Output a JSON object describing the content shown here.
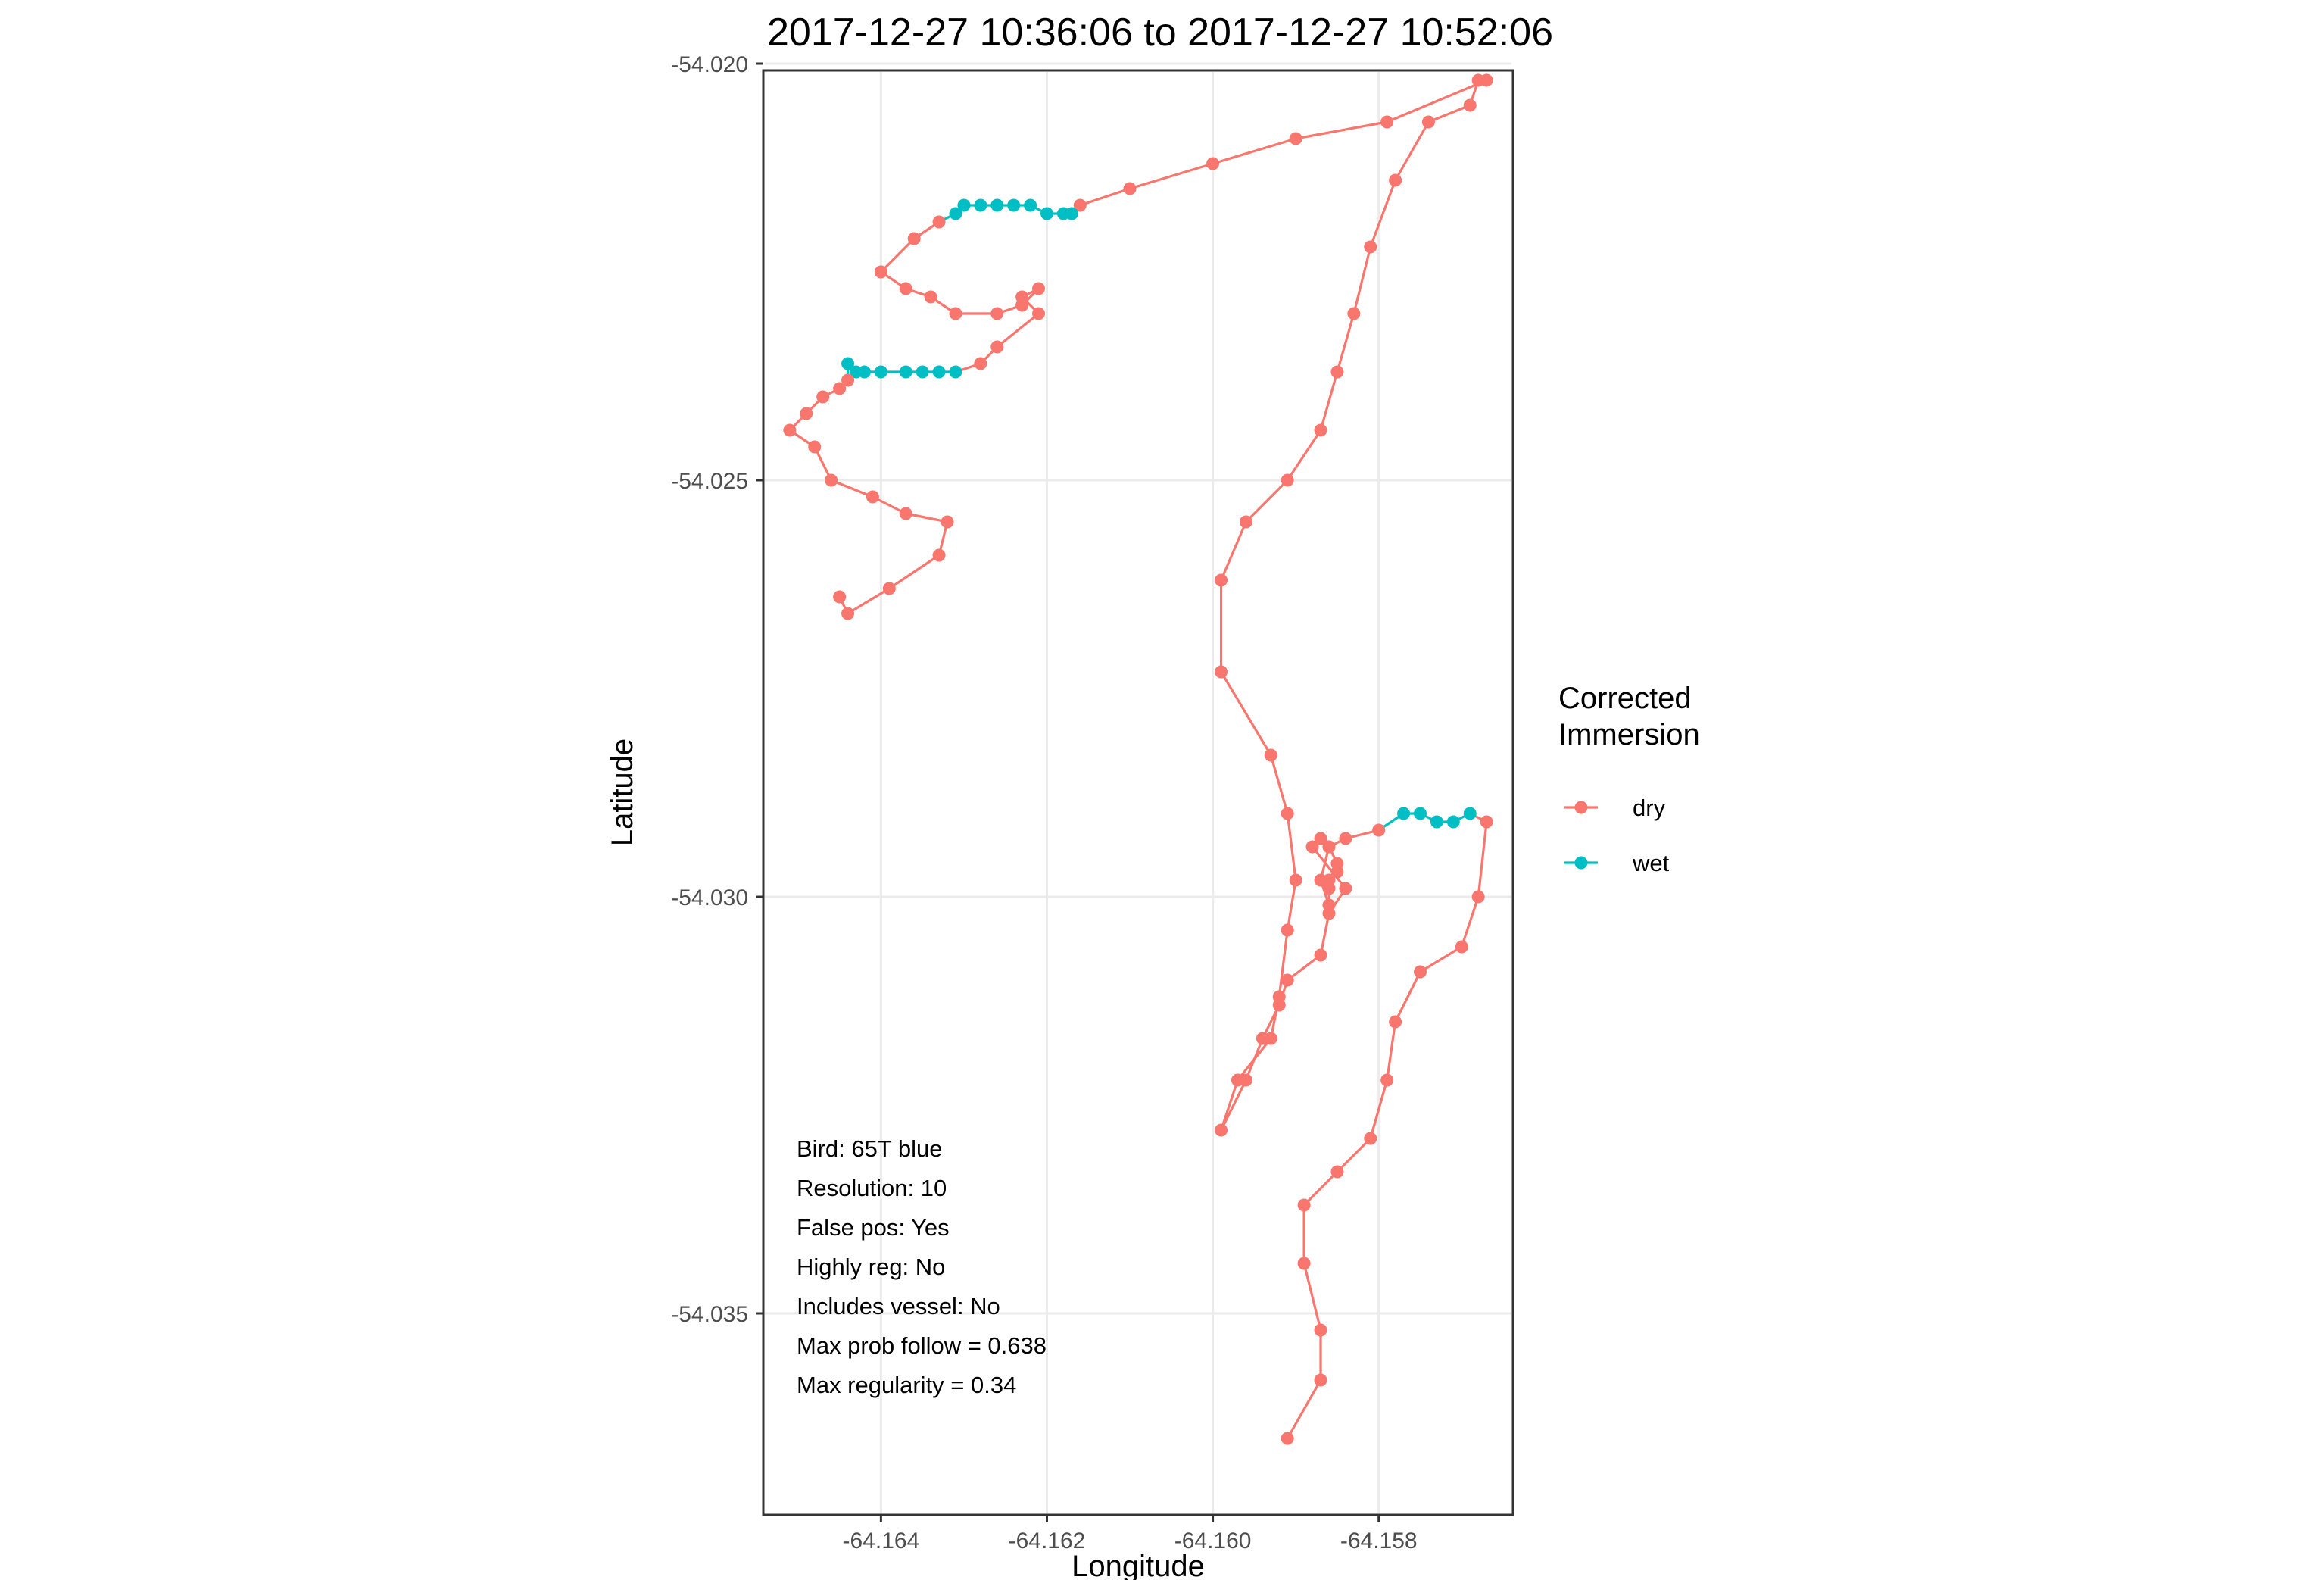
{
  "chart_data": {
    "type": "scatter",
    "title": "2017-12-27 10:36:06 to 2017-12-27 10:52:06",
    "xlabel": "Longitude",
    "ylabel": "Latitude",
    "xlim": [
      -64.1654,
      -64.1564
    ],
    "ylim": [
      -54.0374,
      -54.0201
    ],
    "x_ticks": [
      -64.164,
      -64.162,
      -64.16,
      -64.158
    ],
    "x_tick_labels": [
      "-64.164",
      "-64.162",
      "-64.160",
      "-64.158"
    ],
    "y_ticks": [
      -54.02,
      -54.025,
      -54.03,
      -54.035
    ],
    "y_tick_labels": [
      "-54.020",
      "-54.025",
      "-54.030",
      "-54.035"
    ],
    "grid": true,
    "legend": {
      "title_lines": [
        "Corrected",
        "Immersion"
      ],
      "placement": "right",
      "entries": [
        {
          "label": "dry",
          "color": "#F8766D"
        },
        {
          "label": "wet",
          "color": "#00BFC4"
        }
      ]
    },
    "annotations": [
      "Bird: 65T blue",
      "Resolution: 10",
      "False pos: Yes",
      "Highly reg: No",
      "Includes vessel: No",
      "Max prob follow = 0.638",
      "Max regularity = 0.34"
    ],
    "path": [
      [
        -64.1591,
        -54.0365,
        "dry"
      ],
      [
        -64.1587,
        -54.0358,
        "dry"
      ],
      [
        -64.1587,
        -54.0352,
        "dry"
      ],
      [
        -64.1589,
        -54.0344,
        "dry"
      ],
      [
        -64.1589,
        -54.0337,
        "dry"
      ],
      [
        -64.1585,
        -54.0333,
        "dry"
      ],
      [
        -64.1581,
        -54.0329,
        "dry"
      ],
      [
        -64.1579,
        -54.0322,
        "dry"
      ],
      [
        -64.1578,
        -54.0315,
        "dry"
      ],
      [
        -64.1575,
        -54.0309,
        "dry"
      ],
      [
        -64.157,
        -54.0306,
        "dry"
      ],
      [
        -64.1568,
        -54.03,
        "dry"
      ],
      [
        -64.1567,
        -54.0291,
        "dry"
      ],
      [
        -64.1569,
        -54.029,
        "wet"
      ],
      [
        -64.1571,
        -54.0291,
        "wet"
      ],
      [
        -64.1573,
        -54.0291,
        "wet"
      ],
      [
        -64.1575,
        -54.029,
        "wet"
      ],
      [
        -64.1577,
        -54.029,
        "wet"
      ],
      [
        -64.158,
        -54.0292,
        "dry"
      ],
      [
        -64.1584,
        -54.0293,
        "dry"
      ],
      [
        -64.1586,
        -54.0294,
        "dry"
      ],
      [
        -64.1585,
        -54.0296,
        "dry"
      ],
      [
        -64.1585,
        -54.0297,
        "dry"
      ],
      [
        -64.1586,
        -54.0298,
        "dry"
      ],
      [
        -64.1586,
        -54.0299,
        "dry"
      ],
      [
        -64.1586,
        -54.0301,
        "dry"
      ],
      [
        -64.1587,
        -54.0298,
        "dry"
      ],
      [
        -64.1586,
        -54.0294,
        "dry"
      ],
      [
        -64.1587,
        -54.0293,
        "dry"
      ],
      [
        -64.1588,
        -54.0294,
        "dry"
      ],
      [
        -64.1584,
        -54.0299,
        "dry"
      ],
      [
        -64.1586,
        -54.0302,
        "dry"
      ],
      [
        -64.1587,
        -54.0307,
        "dry"
      ],
      [
        -64.1591,
        -54.031,
        "dry"
      ],
      [
        -64.1592,
        -54.0313,
        "dry"
      ],
      [
        -64.1594,
        -54.0317,
        "dry"
      ],
      [
        -64.1596,
        -54.0322,
        "dry"
      ],
      [
        -64.1599,
        -54.0328,
        "dry"
      ],
      [
        -64.1597,
        -54.0322,
        "dry"
      ],
      [
        -64.1593,
        -54.0317,
        "dry"
      ],
      [
        -64.1592,
        -54.0312,
        "dry"
      ],
      [
        -64.1591,
        -54.0304,
        "dry"
      ],
      [
        -64.159,
        -54.0298,
        "dry"
      ],
      [
        -64.1591,
        -54.029,
        "dry"
      ],
      [
        -64.1593,
        -54.0283,
        "dry"
      ],
      [
        -64.1599,
        -54.0273,
        "dry"
      ],
      [
        -64.1599,
        -54.0262,
        "dry"
      ],
      [
        -64.1596,
        -54.0255,
        "dry"
      ],
      [
        -64.1591,
        -54.025,
        "dry"
      ],
      [
        -64.1587,
        -54.0244,
        "dry"
      ],
      [
        -64.1585,
        -54.0237,
        "dry"
      ],
      [
        -64.1583,
        -54.023,
        "dry"
      ],
      [
        -64.1581,
        -54.0222,
        "dry"
      ],
      [
        -64.1578,
        -54.0214,
        "dry"
      ],
      [
        -64.1574,
        -54.0207,
        "dry"
      ],
      [
        -64.1569,
        -54.0205,
        "dry"
      ],
      [
        -64.1568,
        -54.0202,
        "dry"
      ],
      [
        -64.1567,
        -54.0202,
        "dry"
      ],
      [
        -64.1579,
        -54.0207,
        "dry"
      ],
      [
        -64.159,
        -54.0209,
        "dry"
      ],
      [
        -64.16,
        -54.0212,
        "dry"
      ],
      [
        -64.161,
        -54.0215,
        "dry"
      ],
      [
        -64.1616,
        -54.0217,
        "dry"
      ],
      [
        -64.1617,
        -54.0218,
        "wet"
      ],
      [
        -64.1618,
        -54.0218,
        "wet"
      ],
      [
        -64.162,
        -54.0218,
        "wet"
      ],
      [
        -64.1622,
        -54.0217,
        "wet"
      ],
      [
        -64.1624,
        -54.0217,
        "wet"
      ],
      [
        -64.1626,
        -54.0217,
        "wet"
      ],
      [
        -64.1628,
        -54.0217,
        "wet"
      ],
      [
        -64.163,
        -54.0217,
        "wet"
      ],
      [
        -64.1631,
        -54.0218,
        "wet"
      ],
      [
        -64.1633,
        -54.0219,
        "dry"
      ],
      [
        -64.1636,
        -54.0221,
        "dry"
      ],
      [
        -64.164,
        -54.0225,
        "dry"
      ],
      [
        -64.1637,
        -54.0227,
        "dry"
      ],
      [
        -64.1634,
        -54.0228,
        "dry"
      ],
      [
        -64.1631,
        -54.023,
        "dry"
      ],
      [
        -64.1626,
        -54.023,
        "dry"
      ],
      [
        -64.1623,
        -54.0229,
        "dry"
      ],
      [
        -64.1621,
        -54.0227,
        "dry"
      ],
      [
        -64.1623,
        -54.0228,
        "dry"
      ],
      [
        -64.1621,
        -54.023,
        "dry"
      ],
      [
        -64.1626,
        -54.0234,
        "dry"
      ],
      [
        -64.1628,
        -54.0236,
        "dry"
      ],
      [
        -64.1631,
        -54.0237,
        "wet"
      ],
      [
        -64.1633,
        -54.0237,
        "wet"
      ],
      [
        -64.1635,
        -54.0237,
        "wet"
      ],
      [
        -64.1637,
        -54.0237,
        "wet"
      ],
      [
        -64.164,
        -54.0237,
        "wet"
      ],
      [
        -64.1642,
        -54.0237,
        "wet"
      ],
      [
        -64.1643,
        -54.0237,
        "wet"
      ],
      [
        -64.1644,
        -54.0236,
        "wet"
      ],
      [
        -64.1644,
        -54.0238,
        "dry"
      ],
      [
        -64.1645,
        -54.0239,
        "dry"
      ],
      [
        -64.1647,
        -54.024,
        "dry"
      ],
      [
        -64.1649,
        -54.0242,
        "dry"
      ],
      [
        -64.1651,
        -54.0244,
        "dry"
      ],
      [
        -64.1648,
        -54.0246,
        "dry"
      ],
      [
        -64.1646,
        -54.025,
        "dry"
      ],
      [
        -64.1641,
        -54.0252,
        "dry"
      ],
      [
        -64.1637,
        -54.0254,
        "dry"
      ],
      [
        -64.1632,
        -54.0255,
        "dry"
      ],
      [
        -64.1633,
        -54.0259,
        "dry"
      ],
      [
        -64.1639,
        -54.0263,
        "dry"
      ],
      [
        -64.1644,
        -54.0266,
        "dry"
      ],
      [
        -64.1645,
        -54.0264,
        "dry"
      ]
    ]
  }
}
